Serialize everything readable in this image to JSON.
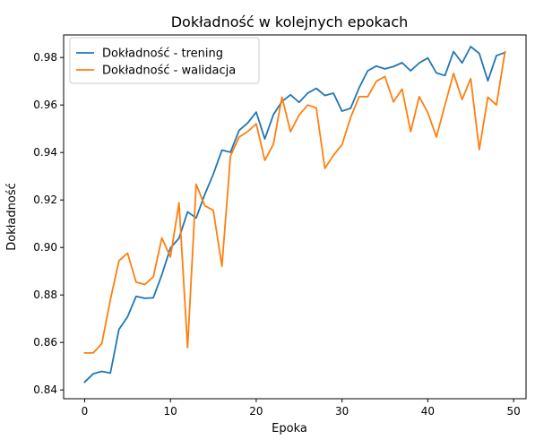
{
  "chart_data": {
    "type": "line",
    "title": "Dokładność w kolejnych epokach",
    "xlabel": "Epoka",
    "ylabel": "Dokładność",
    "xlim": [
      -2.45,
      51.45
    ],
    "ylim": [
      0.8363,
      0.9895
    ],
    "xticks": [
      0,
      10,
      20,
      30,
      40,
      50
    ],
    "yticks": [
      0.84,
      0.86,
      0.88,
      0.9,
      0.92,
      0.94,
      0.96,
      0.98
    ],
    "ytick_labels": [
      "0.84",
      "0.86",
      "0.88",
      "0.90",
      "0.92",
      "0.94",
      "0.96",
      "0.98"
    ],
    "grid": false,
    "legend_position": "upper-left",
    "x": [
      0,
      1,
      2,
      3,
      4,
      5,
      6,
      7,
      8,
      9,
      10,
      11,
      12,
      13,
      14,
      15,
      16,
      17,
      18,
      19,
      20,
      21,
      22,
      23,
      24,
      25,
      26,
      27,
      28,
      29,
      30,
      31,
      32,
      33,
      34,
      35,
      36,
      37,
      38,
      39,
      40,
      41,
      42,
      43,
      44,
      45,
      46,
      47,
      48,
      49
    ],
    "series": [
      {
        "name": "Dokładność - trening",
        "color": "#1f77b4",
        "values": [
          0.8433,
          0.8468,
          0.8478,
          0.8471,
          0.8655,
          0.8708,
          0.8794,
          0.8786,
          0.8788,
          0.8885,
          0.8998,
          0.9039,
          0.915,
          0.9124,
          0.9223,
          0.9309,
          0.941,
          0.9401,
          0.9493,
          0.9524,
          0.957,
          0.9457,
          0.9559,
          0.9615,
          0.9643,
          0.9611,
          0.965,
          0.967,
          0.964,
          0.965,
          0.9574,
          0.9586,
          0.9673,
          0.9744,
          0.9764,
          0.9752,
          0.9762,
          0.9778,
          0.9744,
          0.9777,
          0.9798,
          0.9735,
          0.9724,
          0.9825,
          0.9777,
          0.9846,
          0.9817,
          0.9702,
          0.9808,
          0.9821
        ]
      },
      {
        "name": "Dokładność - walidacja",
        "color": "#ff7f0e",
        "values": [
          0.8556,
          0.8556,
          0.8595,
          0.878,
          0.8944,
          0.8976,
          0.8854,
          0.8844,
          0.8876,
          0.904,
          0.896,
          0.9188,
          0.8578,
          0.9266,
          0.9176,
          0.9156,
          0.8921,
          0.9385,
          0.9465,
          0.9488,
          0.9521,
          0.9367,
          0.9435,
          0.9633,
          0.9488,
          0.9558,
          0.96,
          0.9588,
          0.9333,
          0.9388,
          0.9433,
          0.9547,
          0.9635,
          0.9635,
          0.97,
          0.972,
          0.9613,
          0.9667,
          0.9488,
          0.9635,
          0.9568,
          0.9465,
          0.96,
          0.9733,
          0.9623,
          0.9711,
          0.9412,
          0.9633,
          0.96,
          0.9824
        ]
      }
    ]
  }
}
